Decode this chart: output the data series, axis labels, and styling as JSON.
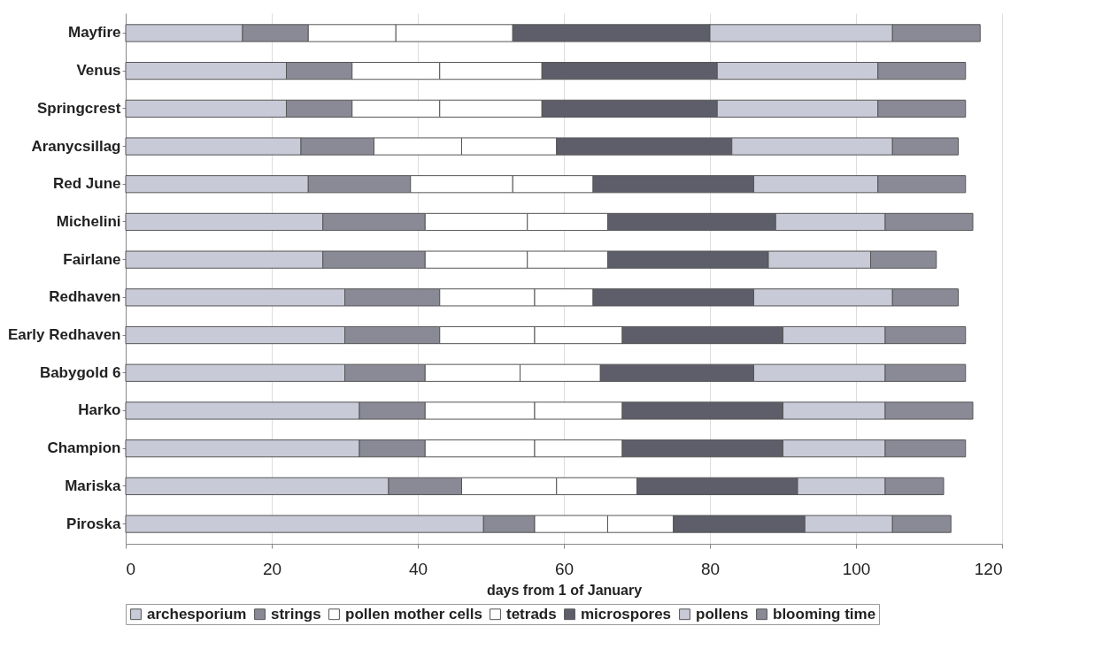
{
  "chart_data": {
    "type": "bar",
    "orientation": "horizontal",
    "stacked": true,
    "xlabel": "days from 1 of January",
    "categories": [
      "Mayfire",
      "Venus",
      "Springcrest",
      "Aranycsillag",
      "Red June",
      "Michelini",
      "Fairlane",
      "Redhaven",
      "Early Redhaven",
      "Babygold 6",
      "Harko",
      "Champion",
      "Mariska",
      "Piroska"
    ],
    "series": [
      {
        "name": "archesporium",
        "color": "#c8cad8",
        "values": [
          16,
          22,
          22,
          24,
          25,
          27,
          27,
          30,
          30,
          30,
          32,
          32,
          36,
          49
        ]
      },
      {
        "name": "strings",
        "color": "#8a8a96",
        "values": [
          9,
          9,
          9,
          10,
          14,
          14,
          14,
          13,
          13,
          11,
          9,
          9,
          10,
          7
        ]
      },
      {
        "name": "pollen mother cells",
        "color": "#ffffff",
        "values": [
          12,
          12,
          12,
          12,
          14,
          14,
          14,
          13,
          13,
          13,
          15,
          15,
          13,
          10
        ]
      },
      {
        "name": "tetrads",
        "color": "#ffffff",
        "values": [
          16,
          14,
          14,
          13,
          11,
          11,
          11,
          8,
          12,
          11,
          12,
          12,
          11,
          9
        ]
      },
      {
        "name": "microspores",
        "color": "#5e5e6a",
        "values": [
          27,
          24,
          24,
          24,
          22,
          23,
          22,
          22,
          22,
          21,
          22,
          22,
          22,
          18
        ]
      },
      {
        "name": "pollens",
        "color": "#c8cad8",
        "values": [
          25,
          22,
          22,
          22,
          17,
          15,
          14,
          19,
          14,
          18,
          14,
          14,
          12,
          12
        ]
      },
      {
        "name": "blooming time",
        "color": "#8a8a96",
        "values": [
          12,
          12,
          12,
          9,
          12,
          12,
          9,
          9,
          11,
          11,
          12,
          11,
          8,
          8
        ]
      }
    ],
    "xlim": [
      0,
      120
    ],
    "xticks": [
      0,
      20,
      40,
      60,
      80,
      100,
      120
    ],
    "grid": "x",
    "legend": "bottom"
  }
}
